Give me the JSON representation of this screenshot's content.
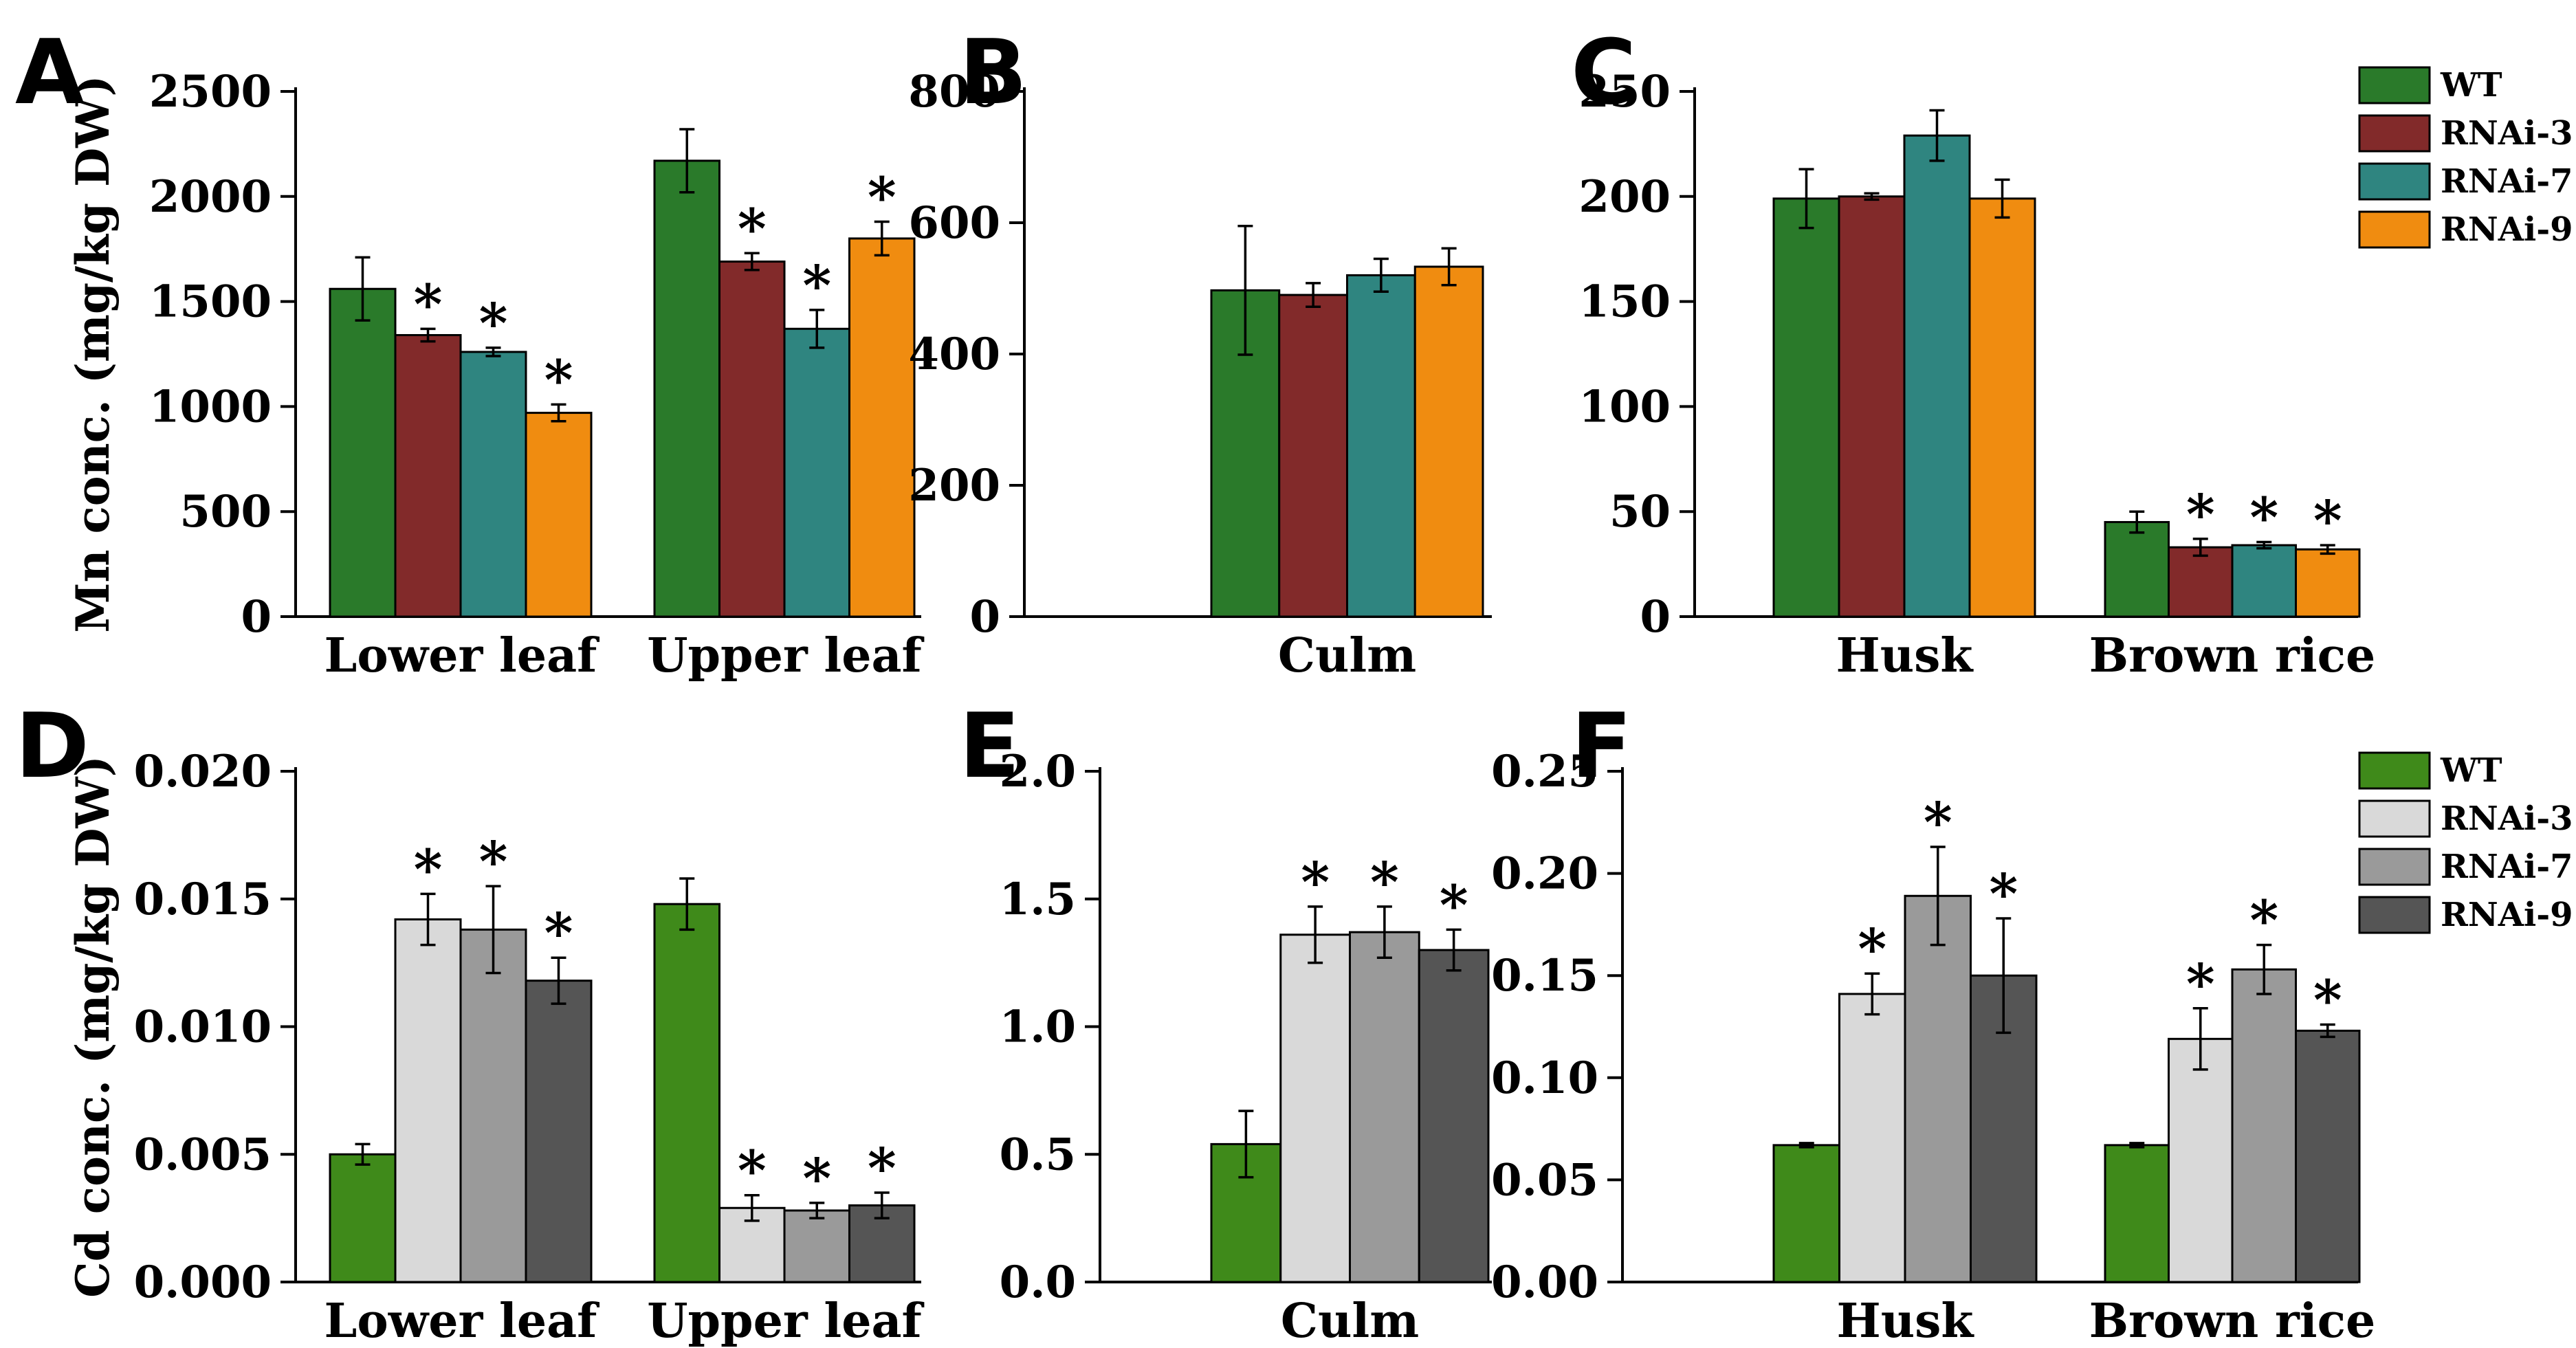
{
  "figure": {
    "colors": {
      "mn": [
        "#2a7a2a",
        "#822a2a",
        "#2f8580",
        "#f08c10"
      ],
      "cd": [
        "#3f8a1a",
        "#d9d9d9",
        "#9a9a9a",
        "#555555"
      ]
    }
  },
  "legends": {
    "top": [
      "WT",
      "RNAi-3",
      "RNAi-7",
      "RNAi-9"
    ],
    "bottom": [
      "WT",
      "RNAi-3",
      "RNAi-7",
      "RNAi-9"
    ]
  },
  "chart_data": [
    {
      "panel": "A",
      "type": "bar",
      "palette": "mn",
      "ylabel": "Mn conc. (mg/kg DW)",
      "ylim": [
        0,
        2500
      ],
      "yticks": [
        0,
        500,
        1000,
        1500,
        2000,
        2500
      ],
      "ytick_labels": [
        "0",
        "500",
        "1000",
        "1500",
        "2000",
        "2500"
      ],
      "categories": [
        "Lower leaf",
        "Upper leaf"
      ],
      "series": [
        {
          "name": "WT",
          "values": [
            1560,
            2170
          ],
          "errors": [
            150,
            150
          ],
          "sig": [
            false,
            false
          ]
        },
        {
          "name": "RNAi-3",
          "values": [
            1340,
            1690
          ],
          "errors": [
            30,
            40
          ],
          "sig": [
            true,
            true
          ]
        },
        {
          "name": "RNAi-7",
          "values": [
            1260,
            1370
          ],
          "errors": [
            20,
            90
          ],
          "sig": [
            true,
            true
          ]
        },
        {
          "name": "RNAi-9",
          "values": [
            970,
            1800
          ],
          "errors": [
            40,
            80
          ],
          "sig": [
            true,
            true
          ]
        }
      ]
    },
    {
      "panel": "B",
      "type": "bar",
      "palette": "mn",
      "ylabel": "",
      "ylim": [
        0,
        800
      ],
      "yticks": [
        0,
        200,
        400,
        600,
        800
      ],
      "ytick_labels": [
        "0",
        "200",
        "400",
        "600",
        "800"
      ],
      "categories": [
        "Culm"
      ],
      "series": [
        {
          "name": "WT",
          "values": [
            497
          ],
          "errors": [
            98
          ],
          "sig": [
            false
          ]
        },
        {
          "name": "RNAi-3",
          "values": [
            490
          ],
          "errors": [
            18
          ],
          "sig": [
            false
          ]
        },
        {
          "name": "RNAi-7",
          "values": [
            520
          ],
          "errors": [
            25
          ],
          "sig": [
            false
          ]
        },
        {
          "name": "RNAi-9",
          "values": [
            533
          ],
          "errors": [
            28
          ],
          "sig": [
            false
          ]
        }
      ]
    },
    {
      "panel": "C",
      "type": "bar",
      "palette": "mn",
      "ylabel": "",
      "ylim": [
        0,
        250
      ],
      "yticks": [
        0,
        50,
        100,
        150,
        200,
        250
      ],
      "ytick_labels": [
        "0",
        "50",
        "100",
        "150",
        "200",
        "250"
      ],
      "categories": [
        "Husk",
        "Brown rice"
      ],
      "legend": "top",
      "series": [
        {
          "name": "WT",
          "values": [
            199,
            45
          ],
          "errors": [
            14,
            5
          ],
          "sig": [
            false,
            false
          ]
        },
        {
          "name": "RNAi-3",
          "values": [
            200,
            33
          ],
          "errors": [
            1.5,
            4
          ],
          "sig": [
            false,
            true
          ]
        },
        {
          "name": "RNAi-7",
          "values": [
            229,
            34
          ],
          "errors": [
            12,
            1.5
          ],
          "sig": [
            false,
            true
          ]
        },
        {
          "name": "RNAi-9",
          "values": [
            199,
            32
          ],
          "errors": [
            9,
            2
          ],
          "sig": [
            false,
            true
          ]
        }
      ]
    },
    {
      "panel": "D",
      "type": "bar",
      "palette": "cd",
      "ylabel": "Cd conc. (mg/kg DW)",
      "ylim": [
        0,
        0.02
      ],
      "yticks": [
        0,
        0.005,
        0.01,
        0.015,
        0.02
      ],
      "ytick_labels": [
        "0.000",
        "0.005",
        "0.010",
        "0.015",
        "0.020"
      ],
      "categories": [
        "Lower leaf",
        "Upper leaf"
      ],
      "series": [
        {
          "name": "WT",
          "values": [
            0.005,
            0.0148
          ],
          "errors": [
            0.0004,
            0.001
          ],
          "sig": [
            false,
            false
          ]
        },
        {
          "name": "RNAi-3",
          "values": [
            0.0142,
            0.0029
          ],
          "errors": [
            0.001,
            0.0005
          ],
          "sig": [
            true,
            true
          ]
        },
        {
          "name": "RNAi-7",
          "values": [
            0.0138,
            0.0028
          ],
          "errors": [
            0.0017,
            0.0003
          ],
          "sig": [
            true,
            true
          ]
        },
        {
          "name": "RNAi-9",
          "values": [
            0.0118,
            0.003
          ],
          "errors": [
            0.0009,
            0.0005
          ],
          "sig": [
            true,
            true
          ]
        }
      ]
    },
    {
      "panel": "E",
      "type": "bar",
      "palette": "cd",
      "ylabel": "",
      "ylim": [
        0,
        2.0
      ],
      "yticks": [
        0,
        0.5,
        1.0,
        1.5,
        2.0
      ],
      "ytick_labels": [
        "0.0",
        "0.5",
        "1.0",
        "1.5",
        "2.0"
      ],
      "categories": [
        "Culm"
      ],
      "series": [
        {
          "name": "WT",
          "values": [
            0.54
          ],
          "errors": [
            0.13
          ],
          "sig": [
            false
          ]
        },
        {
          "name": "RNAi-3",
          "values": [
            1.36
          ],
          "errors": [
            0.11
          ],
          "sig": [
            true
          ]
        },
        {
          "name": "RNAi-7",
          "values": [
            1.37
          ],
          "errors": [
            0.1
          ],
          "sig": [
            true
          ]
        },
        {
          "name": "RNAi-9",
          "values": [
            1.3
          ],
          "errors": [
            0.08
          ],
          "sig": [
            true
          ]
        }
      ]
    },
    {
      "panel": "F",
      "type": "bar",
      "palette": "cd",
      "ylabel": "",
      "ylim": [
        0,
        0.25
      ],
      "yticks": [
        0,
        0.05,
        0.1,
        0.15,
        0.2,
        0.25
      ],
      "ytick_labels": [
        "0.00",
        "0.05",
        "0.10",
        "0.15",
        "0.20",
        "0.25"
      ],
      "categories": [
        "Husk",
        "Brown rice"
      ],
      "legend": "bottom",
      "series": [
        {
          "name": "WT",
          "values": [
            0.067,
            0.067
          ],
          "errors": [
            0.001,
            0.001
          ],
          "sig": [
            false,
            false
          ]
        },
        {
          "name": "RNAi-3",
          "values": [
            0.141,
            0.119
          ],
          "errors": [
            0.01,
            0.015
          ],
          "sig": [
            true,
            true
          ]
        },
        {
          "name": "RNAi-7",
          "values": [
            0.189,
            0.153
          ],
          "errors": [
            0.024,
            0.012
          ],
          "sig": [
            true,
            true
          ]
        },
        {
          "name": "RNAi-9",
          "values": [
            0.15,
            0.123
          ],
          "errors": [
            0.028,
            0.003
          ],
          "sig": [
            true,
            true
          ]
        }
      ]
    }
  ]
}
